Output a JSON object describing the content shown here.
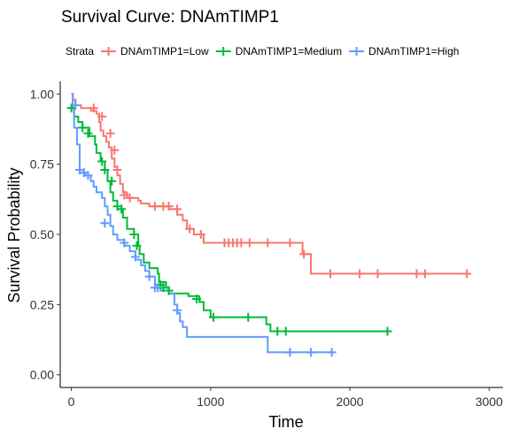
{
  "chart_data": {
    "type": "line",
    "title": "Survival Curve: DNAmTIMP1",
    "xlabel": "Time",
    "ylabel": "Survival Probability",
    "legend": {
      "title": "Strata",
      "position": "top"
    },
    "xlim": [
      -80,
      3100
    ],
    "ylim": [
      -0.045,
      1.045
    ],
    "xticks": [
      0,
      1000,
      2000,
      3000
    ],
    "yticks": [
      0.0,
      0.25,
      0.5,
      0.75,
      1.0
    ],
    "ytick_labels": [
      "0.00",
      "0.25",
      "0.50",
      "0.75",
      "1.00"
    ],
    "grid": false,
    "series": [
      {
        "name": "DNAmTIMP1=Low",
        "color": "#F8766D",
        "steps": [
          [
            0,
            1.0
          ],
          [
            10,
            0.98
          ],
          [
            30,
            0.96
          ],
          [
            70,
            0.95
          ],
          [
            140,
            0.94
          ],
          [
            180,
            0.93
          ],
          [
            200,
            0.9
          ],
          [
            210,
            0.87
          ],
          [
            230,
            0.85
          ],
          [
            250,
            0.83
          ],
          [
            270,
            0.81
          ],
          [
            290,
            0.77
          ],
          [
            310,
            0.74
          ],
          [
            330,
            0.71
          ],
          [
            350,
            0.68
          ],
          [
            370,
            0.65
          ],
          [
            400,
            0.63
          ],
          [
            480,
            0.62
          ],
          [
            500,
            0.61
          ],
          [
            560,
            0.6
          ],
          [
            700,
            0.59
          ],
          [
            760,
            0.57
          ],
          [
            800,
            0.55
          ],
          [
            830,
            0.52
          ],
          [
            880,
            0.5
          ],
          [
            950,
            0.47
          ],
          [
            1660,
            0.43
          ],
          [
            1720,
            0.36
          ],
          [
            2850,
            0.36
          ]
        ],
        "censors": [
          [
            160,
            0.95
          ],
          [
            220,
            0.92
          ],
          [
            280,
            0.86
          ],
          [
            310,
            0.8
          ],
          [
            330,
            0.73
          ],
          [
            380,
            0.64
          ],
          [
            420,
            0.63
          ],
          [
            600,
            0.6
          ],
          [
            660,
            0.6
          ],
          [
            700,
            0.6
          ],
          [
            760,
            0.59
          ],
          [
            850,
            0.52
          ],
          [
            930,
            0.5
          ],
          [
            1100,
            0.47
          ],
          [
            1130,
            0.47
          ],
          [
            1160,
            0.47
          ],
          [
            1190,
            0.47
          ],
          [
            1220,
            0.47
          ],
          [
            1280,
            0.47
          ],
          [
            1410,
            0.47
          ],
          [
            1570,
            0.47
          ],
          [
            1670,
            0.43
          ],
          [
            1860,
            0.36
          ],
          [
            2070,
            0.36
          ],
          [
            2200,
            0.36
          ],
          [
            2480,
            0.36
          ],
          [
            2540,
            0.36
          ],
          [
            2840,
            0.36
          ]
        ]
      },
      {
        "name": "DNAmTIMP1=Medium",
        "color": "#00BA38",
        "steps": [
          [
            0,
            0.95
          ],
          [
            20,
            0.92
          ],
          [
            50,
            0.9
          ],
          [
            80,
            0.88
          ],
          [
            130,
            0.85
          ],
          [
            170,
            0.82
          ],
          [
            180,
            0.79
          ],
          [
            210,
            0.76
          ],
          [
            240,
            0.73
          ],
          [
            260,
            0.69
          ],
          [
            280,
            0.65
          ],
          [
            300,
            0.62
          ],
          [
            330,
            0.59
          ],
          [
            370,
            0.56
          ],
          [
            400,
            0.52
          ],
          [
            450,
            0.5
          ],
          [
            480,
            0.46
          ],
          [
            490,
            0.43
          ],
          [
            520,
            0.4
          ],
          [
            560,
            0.38
          ],
          [
            620,
            0.36
          ],
          [
            630,
            0.33
          ],
          [
            680,
            0.31
          ],
          [
            700,
            0.29
          ],
          [
            840,
            0.28
          ],
          [
            920,
            0.26
          ],
          [
            950,
            0.23
          ],
          [
            1000,
            0.205
          ],
          [
            1400,
            0.18
          ],
          [
            1430,
            0.155
          ],
          [
            2270,
            0.155
          ]
        ],
        "censors": [
          [
            0,
            0.95
          ],
          [
            80,
            0.88
          ],
          [
            120,
            0.86
          ],
          [
            220,
            0.76
          ],
          [
            240,
            0.73
          ],
          [
            290,
            0.69
          ],
          [
            330,
            0.6
          ],
          [
            360,
            0.59
          ],
          [
            450,
            0.5
          ],
          [
            470,
            0.46
          ],
          [
            640,
            0.32
          ],
          [
            660,
            0.31
          ],
          [
            700,
            0.3
          ],
          [
            900,
            0.27
          ],
          [
            1020,
            0.205
          ],
          [
            1270,
            0.205
          ],
          [
            1480,
            0.155
          ],
          [
            1540,
            0.155
          ],
          [
            2270,
            0.155
          ]
        ]
      },
      {
        "name": "DNAmTIMP1=High",
        "color": "#619CFF",
        "steps": [
          [
            0,
            1.0
          ],
          [
            10,
            0.95
          ],
          [
            20,
            0.88
          ],
          [
            40,
            0.82
          ],
          [
            60,
            0.72
          ],
          [
            100,
            0.71
          ],
          [
            140,
            0.69
          ],
          [
            160,
            0.67
          ],
          [
            180,
            0.65
          ],
          [
            220,
            0.63
          ],
          [
            240,
            0.6
          ],
          [
            260,
            0.57
          ],
          [
            280,
            0.53
          ],
          [
            300,
            0.5
          ],
          [
            330,
            0.48
          ],
          [
            380,
            0.46
          ],
          [
            420,
            0.44
          ],
          [
            460,
            0.41
          ],
          [
            500,
            0.39
          ],
          [
            530,
            0.37
          ],
          [
            560,
            0.35
          ],
          [
            600,
            0.32
          ],
          [
            640,
            0.3
          ],
          [
            700,
            0.29
          ],
          [
            740,
            0.25
          ],
          [
            760,
            0.22
          ],
          [
            780,
            0.19
          ],
          [
            800,
            0.17
          ],
          [
            830,
            0.135
          ],
          [
            1410,
            0.08
          ],
          [
            1890,
            0.08
          ]
        ],
        "censors": [
          [
            30,
            0.96
          ],
          [
            60,
            0.73
          ],
          [
            90,
            0.72
          ],
          [
            120,
            0.71
          ],
          [
            240,
            0.54
          ],
          [
            380,
            0.47
          ],
          [
            460,
            0.42
          ],
          [
            560,
            0.35
          ],
          [
            600,
            0.31
          ],
          [
            620,
            0.31
          ],
          [
            760,
            0.23
          ],
          [
            1570,
            0.08
          ],
          [
            1720,
            0.08
          ],
          [
            1870,
            0.08
          ]
        ]
      }
    ]
  }
}
